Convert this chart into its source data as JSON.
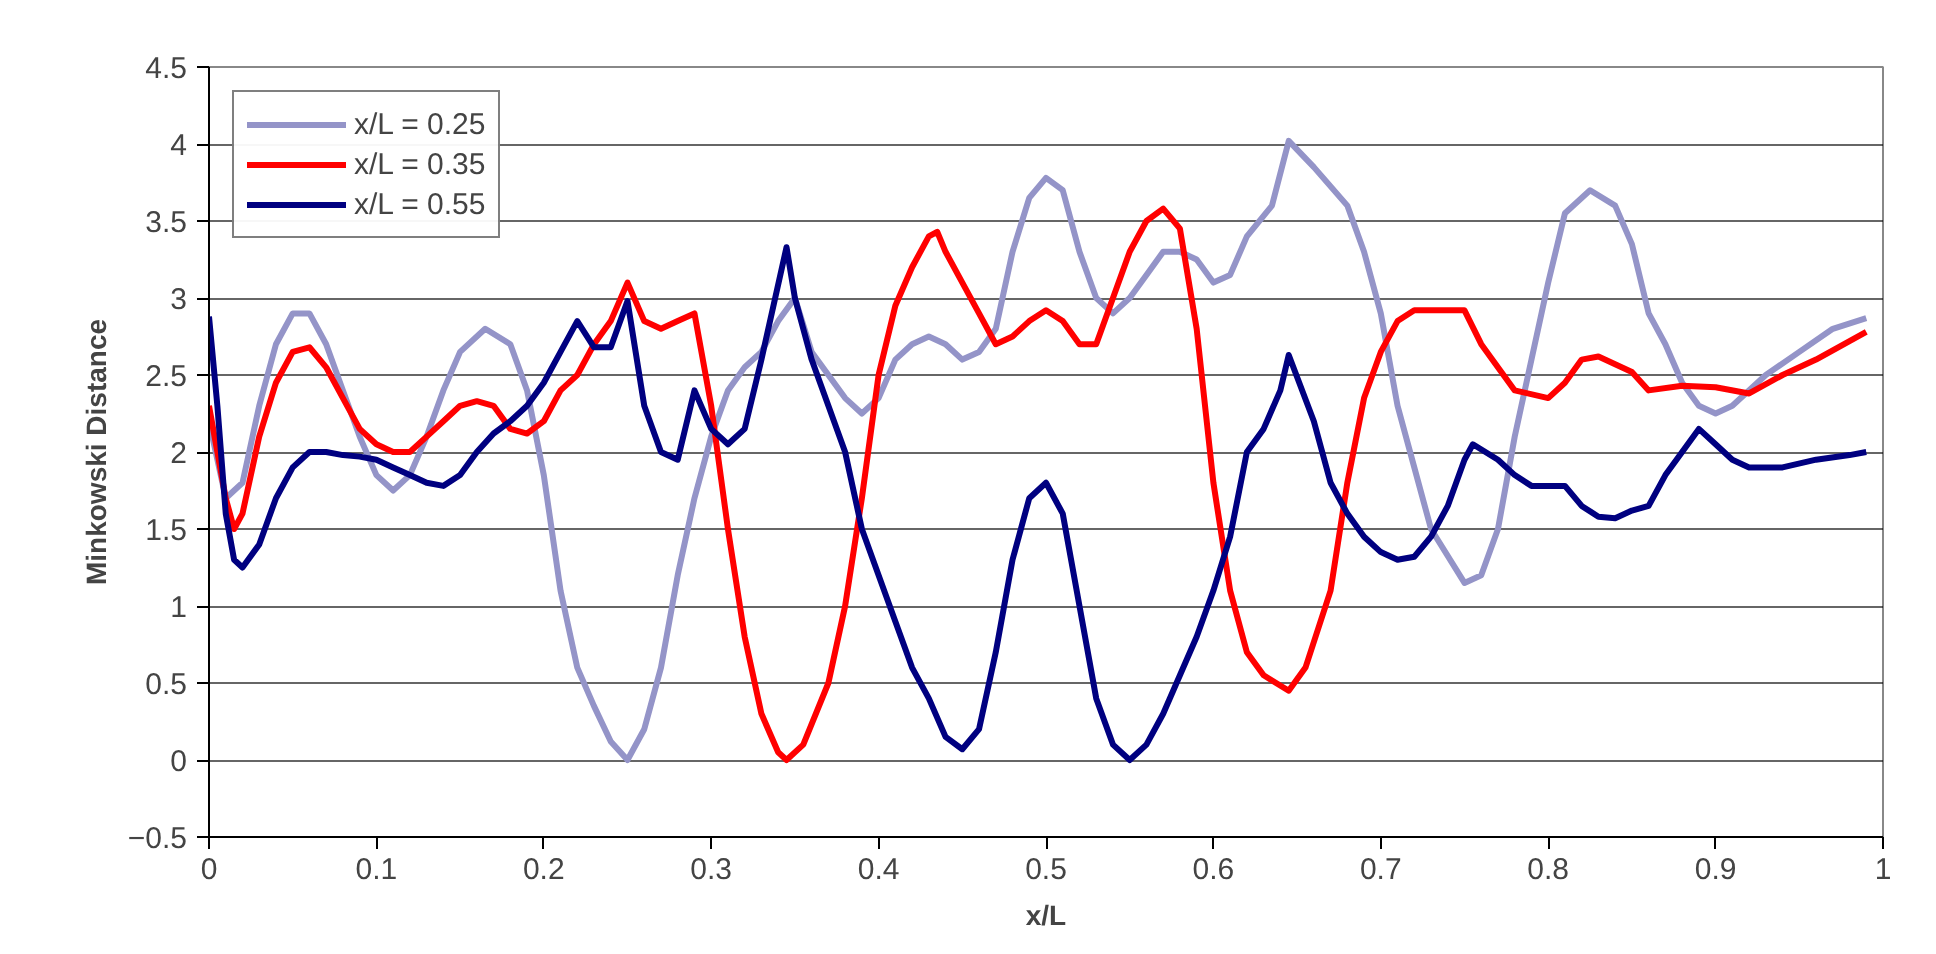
{
  "chart_data": {
    "type": "line",
    "xlabel": "x/L",
    "ylabel": "Minkowski Distance",
    "xlim": [
      0,
      1
    ],
    "ylim": [
      -0.5,
      4.5
    ],
    "xticks": [
      0,
      0.1,
      0.2,
      0.3,
      0.4,
      0.5,
      0.6,
      0.7,
      0.8,
      0.9,
      1
    ],
    "yticks": [
      -0.5,
      0,
      0.5,
      1,
      1.5,
      2,
      2.5,
      3,
      3.5,
      4,
      4.5
    ],
    "grid": "y",
    "legend": "top left",
    "marker": "none",
    "line_style": "solid",
    "series": [
      {
        "name": "x/L = 0.25",
        "color": "#9494c8",
        "x": [
          0,
          0.01,
          0.02,
          0.03,
          0.04,
          0.05,
          0.06,
          0.07,
          0.08,
          0.09,
          0.1,
          0.11,
          0.12,
          0.13,
          0.14,
          0.15,
          0.165,
          0.18,
          0.19,
          0.2,
          0.21,
          0.22,
          0.23,
          0.24,
          0.25,
          0.26,
          0.27,
          0.28,
          0.29,
          0.3,
          0.31,
          0.32,
          0.33,
          0.34,
          0.35,
          0.36,
          0.37,
          0.38,
          0.39,
          0.4,
          0.41,
          0.42,
          0.43,
          0.44,
          0.45,
          0.46,
          0.47,
          0.48,
          0.49,
          0.5,
          0.51,
          0.52,
          0.53,
          0.54,
          0.55,
          0.56,
          0.57,
          0.58,
          0.59,
          0.6,
          0.61,
          0.62,
          0.635,
          0.645,
          0.66,
          0.68,
          0.69,
          0.7,
          0.71,
          0.72,
          0.73,
          0.75,
          0.76,
          0.77,
          0.78,
          0.79,
          0.8,
          0.81,
          0.825,
          0.84,
          0.85,
          0.86,
          0.87,
          0.88,
          0.89,
          0.9,
          0.91,
          0.93,
          0.95,
          0.97,
          0.99
        ],
        "values": [
          2.2,
          1.7,
          1.8,
          2.3,
          2.7,
          2.9,
          2.9,
          2.7,
          2.4,
          2.1,
          1.85,
          1.75,
          1.85,
          2.1,
          2.4,
          2.65,
          2.8,
          2.7,
          2.4,
          1.85,
          1.1,
          0.6,
          0.35,
          0.12,
          0.0,
          0.2,
          0.6,
          1.2,
          1.7,
          2.1,
          2.4,
          2.55,
          2.65,
          2.85,
          3.0,
          2.65,
          2.5,
          2.35,
          2.25,
          2.35,
          2.6,
          2.7,
          2.75,
          2.7,
          2.6,
          2.65,
          2.8,
          3.3,
          3.65,
          3.78,
          3.7,
          3.3,
          3.0,
          2.9,
          3.0,
          3.15,
          3.3,
          3.3,
          3.25,
          3.1,
          3.15,
          3.4,
          3.6,
          4.02,
          3.85,
          3.6,
          3.3,
          2.9,
          2.3,
          1.9,
          1.5,
          1.15,
          1.2,
          1.5,
          2.1,
          2.6,
          3.1,
          3.55,
          3.7,
          3.6,
          3.35,
          2.9,
          2.7,
          2.45,
          2.3,
          2.25,
          2.3,
          2.5,
          2.65,
          2.8,
          2.87
        ]
      },
      {
        "name": "x/L = 0.35",
        "color": "#ff0000",
        "x": [
          0,
          0.01,
          0.015,
          0.02,
          0.03,
          0.04,
          0.05,
          0.06,
          0.07,
          0.08,
          0.09,
          0.1,
          0.11,
          0.12,
          0.13,
          0.14,
          0.15,
          0.16,
          0.17,
          0.18,
          0.19,
          0.2,
          0.21,
          0.22,
          0.23,
          0.24,
          0.25,
          0.26,
          0.27,
          0.28,
          0.29,
          0.3,
          0.31,
          0.32,
          0.33,
          0.34,
          0.345,
          0.355,
          0.37,
          0.38,
          0.39,
          0.4,
          0.41,
          0.42,
          0.43,
          0.435,
          0.44,
          0.45,
          0.46,
          0.47,
          0.48,
          0.49,
          0.5,
          0.51,
          0.52,
          0.53,
          0.54,
          0.55,
          0.56,
          0.57,
          0.58,
          0.59,
          0.6,
          0.61,
          0.62,
          0.63,
          0.645,
          0.655,
          0.67,
          0.68,
          0.69,
          0.7,
          0.71,
          0.72,
          0.75,
          0.76,
          0.78,
          0.8,
          0.81,
          0.82,
          0.83,
          0.85,
          0.86,
          0.88,
          0.9,
          0.92,
          0.94,
          0.96,
          0.98,
          0.99
        ],
        "values": [
          2.3,
          1.7,
          1.5,
          1.6,
          2.1,
          2.45,
          2.65,
          2.68,
          2.55,
          2.35,
          2.15,
          2.05,
          2.0,
          2.0,
          2.1,
          2.2,
          2.3,
          2.33,
          2.3,
          2.15,
          2.12,
          2.2,
          2.4,
          2.5,
          2.7,
          2.85,
          3.1,
          2.85,
          2.8,
          2.85,
          2.9,
          2.3,
          1.5,
          0.8,
          0.3,
          0.05,
          0.0,
          0.1,
          0.5,
          1.0,
          1.7,
          2.5,
          2.95,
          3.2,
          3.4,
          3.43,
          3.3,
          3.1,
          2.9,
          2.7,
          2.75,
          2.85,
          2.92,
          2.85,
          2.7,
          2.7,
          3.0,
          3.3,
          3.5,
          3.58,
          3.45,
          2.8,
          1.8,
          1.1,
          0.7,
          0.55,
          0.45,
          0.6,
          1.1,
          1.8,
          2.35,
          2.65,
          2.85,
          2.92,
          2.92,
          2.7,
          2.4,
          2.35,
          2.45,
          2.6,
          2.62,
          2.52,
          2.4,
          2.43,
          2.42,
          2.38,
          2.5,
          2.6,
          2.72,
          2.78
        ]
      },
      {
        "name": "x/L = 0.55",
        "color": "#000080",
        "x": [
          0,
          0.005,
          0.01,
          0.015,
          0.02,
          0.03,
          0.04,
          0.05,
          0.06,
          0.07,
          0.08,
          0.09,
          0.1,
          0.11,
          0.12,
          0.13,
          0.14,
          0.15,
          0.16,
          0.17,
          0.18,
          0.19,
          0.2,
          0.21,
          0.22,
          0.23,
          0.24,
          0.25,
          0.26,
          0.27,
          0.28,
          0.29,
          0.3,
          0.31,
          0.32,
          0.33,
          0.345,
          0.35,
          0.36,
          0.37,
          0.38,
          0.39,
          0.4,
          0.41,
          0.42,
          0.43,
          0.44,
          0.45,
          0.46,
          0.47,
          0.48,
          0.49,
          0.5,
          0.51,
          0.52,
          0.53,
          0.54,
          0.55,
          0.56,
          0.57,
          0.58,
          0.59,
          0.6,
          0.61,
          0.62,
          0.63,
          0.64,
          0.645,
          0.66,
          0.67,
          0.68,
          0.69,
          0.7,
          0.71,
          0.72,
          0.73,
          0.74,
          0.75,
          0.755,
          0.77,
          0.78,
          0.79,
          0.8,
          0.81,
          0.82,
          0.83,
          0.84,
          0.85,
          0.86,
          0.87,
          0.88,
          0.89,
          0.9,
          0.91,
          0.92,
          0.94,
          0.96,
          0.98,
          0.99
        ],
        "values": [
          2.88,
          2.3,
          1.6,
          1.3,
          1.25,
          1.4,
          1.7,
          1.9,
          2.0,
          2.0,
          1.98,
          1.97,
          1.95,
          1.9,
          1.85,
          1.8,
          1.78,
          1.85,
          2.0,
          2.12,
          2.2,
          2.3,
          2.45,
          2.65,
          2.85,
          2.68,
          2.68,
          2.98,
          2.3,
          2.0,
          1.95,
          2.4,
          2.15,
          2.05,
          2.15,
          2.6,
          3.33,
          3.0,
          2.6,
          2.3,
          2.0,
          1.5,
          1.2,
          0.9,
          0.6,
          0.4,
          0.15,
          0.07,
          0.2,
          0.7,
          1.3,
          1.7,
          1.8,
          1.6,
          1.0,
          0.4,
          0.1,
          0.0,
          0.1,
          0.3,
          0.55,
          0.8,
          1.1,
          1.45,
          2.0,
          2.15,
          2.4,
          2.63,
          2.2,
          1.8,
          1.6,
          1.45,
          1.35,
          1.3,
          1.32,
          1.45,
          1.65,
          1.95,
          2.05,
          1.95,
          1.85,
          1.78,
          1.78,
          1.78,
          1.65,
          1.58,
          1.57,
          1.62,
          1.65,
          1.85,
          2.0,
          2.15,
          2.05,
          1.95,
          1.9,
          1.9,
          1.95,
          1.98,
          2.0
        ]
      }
    ]
  }
}
